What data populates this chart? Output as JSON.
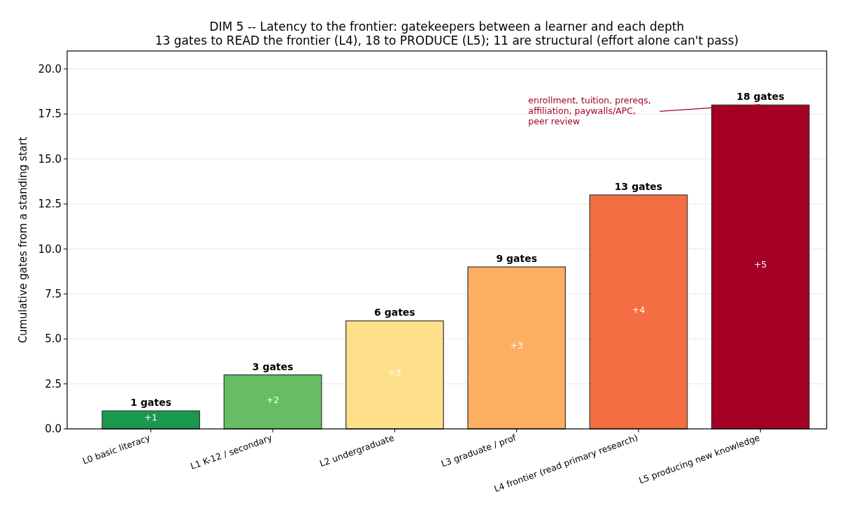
{
  "chart_data": {
    "type": "bar",
    "title": "DIM 5 -- Latency to the frontier: gatekeepers between a learner and each depth",
    "subtitle": "13 gates to READ the frontier (L4), 18 to PRODUCE (L5); 11 are structural (effort alone can't pass)",
    "ylabel": "Cumulative gates from a standing start",
    "categories": [
      "L0 basic literacy",
      "L1 K-12 / secondary",
      "L2 undergraduate",
      "L3 graduate / prof",
      "L4 frontier (read primary research)",
      "L5 producing new knowledge"
    ],
    "values": [
      1,
      3,
      6,
      9,
      13,
      18
    ],
    "colors": [
      "#1a9850",
      "#66bd63",
      "#fee08b",
      "#fdae61",
      "#f46d43",
      "#a50026"
    ],
    "value_labels": [
      "1 gates",
      "3 gates",
      "6 gates",
      "9 gates",
      "13 gates",
      "18 gates"
    ],
    "ylim": [
      0,
      21
    ],
    "yticks": [
      {
        "value": 0,
        "label": "0.0"
      },
      {
        "value": 2.5,
        "label": "2.5"
      },
      {
        "value": 5,
        "label": "5.0"
      },
      {
        "value": 7.5,
        "label": "7.5"
      },
      {
        "value": 10,
        "label": "10.0"
      },
      {
        "value": 12.5,
        "label": "12.5"
      },
      {
        "value": 15,
        "label": "15.0"
      },
      {
        "value": 17.5,
        "label": "17.5"
      },
      {
        "value": 20,
        "label": "20.0"
      }
    ],
    "grid": "y",
    "annotations": [
      "+1",
      "+2",
      "+3",
      "+3",
      "+4",
      "+5",
      {
        "text": "enrollment, tuition, prereqs,\naffiliation, paywalls/APC,\npeer review",
        "x": "L5 producing new knowledge",
        "y": 18
      }
    ]
  }
}
